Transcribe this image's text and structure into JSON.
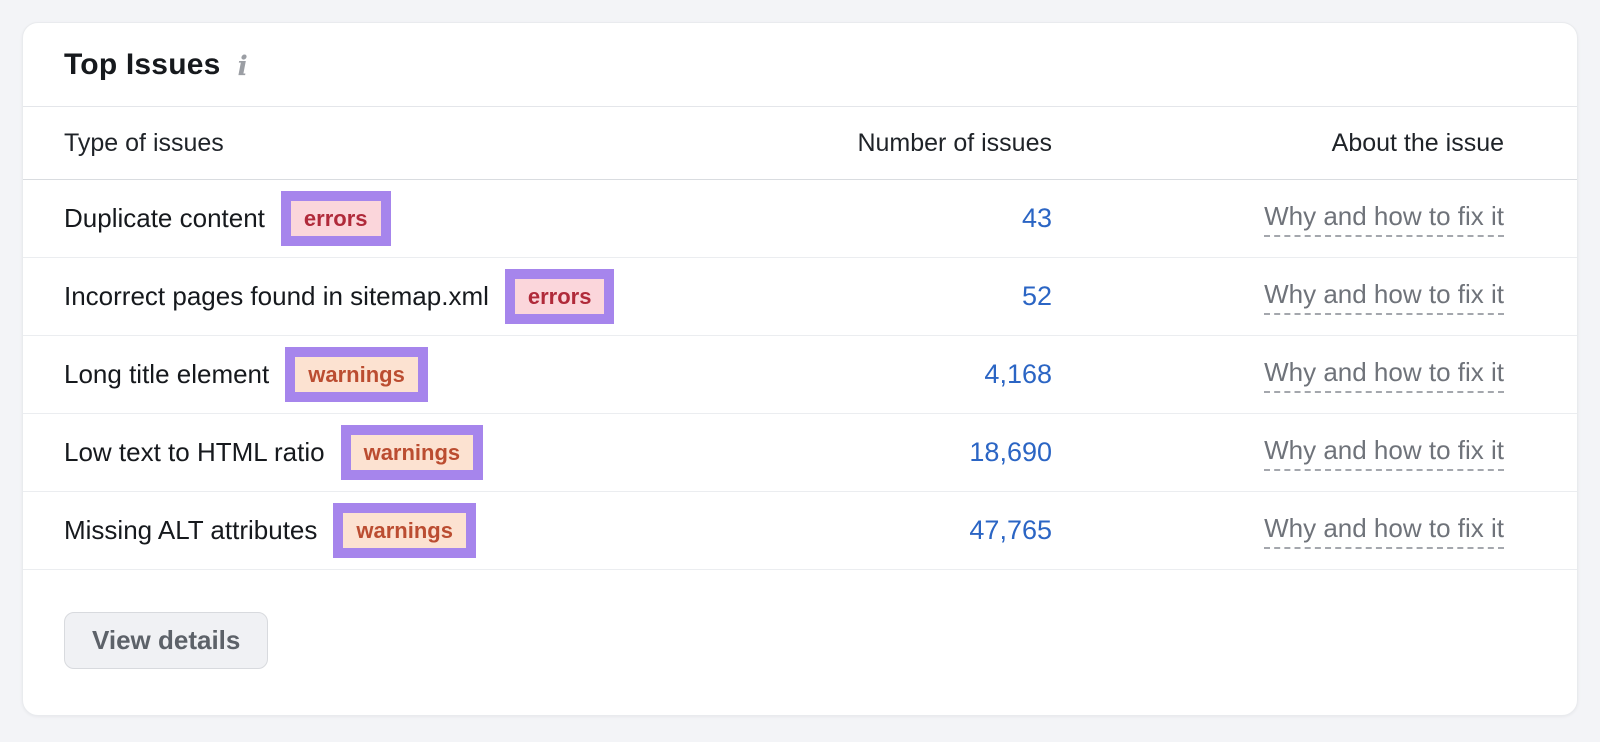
{
  "card": {
    "title": "Top Issues",
    "info_icon": "i"
  },
  "table": {
    "columns": [
      "Type of issues",
      "Number of issues",
      "About the issue"
    ],
    "rows": [
      {
        "label": "Duplicate content",
        "badge": "errors",
        "badge_type": "errors",
        "count": "43",
        "link": "Why and how to fix it"
      },
      {
        "label": "Incorrect pages found in sitemap.xml",
        "badge": "errors",
        "badge_type": "errors",
        "count": "52",
        "link": "Why and how to fix it"
      },
      {
        "label": "Long title element",
        "badge": "warnings",
        "badge_type": "warnings",
        "count": "4,168",
        "link": "Why and how to fix it"
      },
      {
        "label": "Low text to HTML ratio",
        "badge": "warnings",
        "badge_type": "warnings",
        "count": "18,690",
        "link": "Why and how to fix it"
      },
      {
        "label": "Missing ALT attributes",
        "badge": "warnings",
        "badge_type": "warnings",
        "count": "47,765",
        "link": "Why and how to fix it"
      }
    ]
  },
  "footer": {
    "view_details_label": "View details"
  },
  "colors": {
    "page_background": "#f3f4f7",
    "highlight_purple": "#a685ec",
    "error_badge_bg": "#fbd6db",
    "error_badge_text": "#b02a3a",
    "warning_badge_bg": "#fce2d1",
    "warning_badge_text": "#bb4d31",
    "number_link_blue": "#2b65c4",
    "about_link_gray": "#6f737a"
  }
}
